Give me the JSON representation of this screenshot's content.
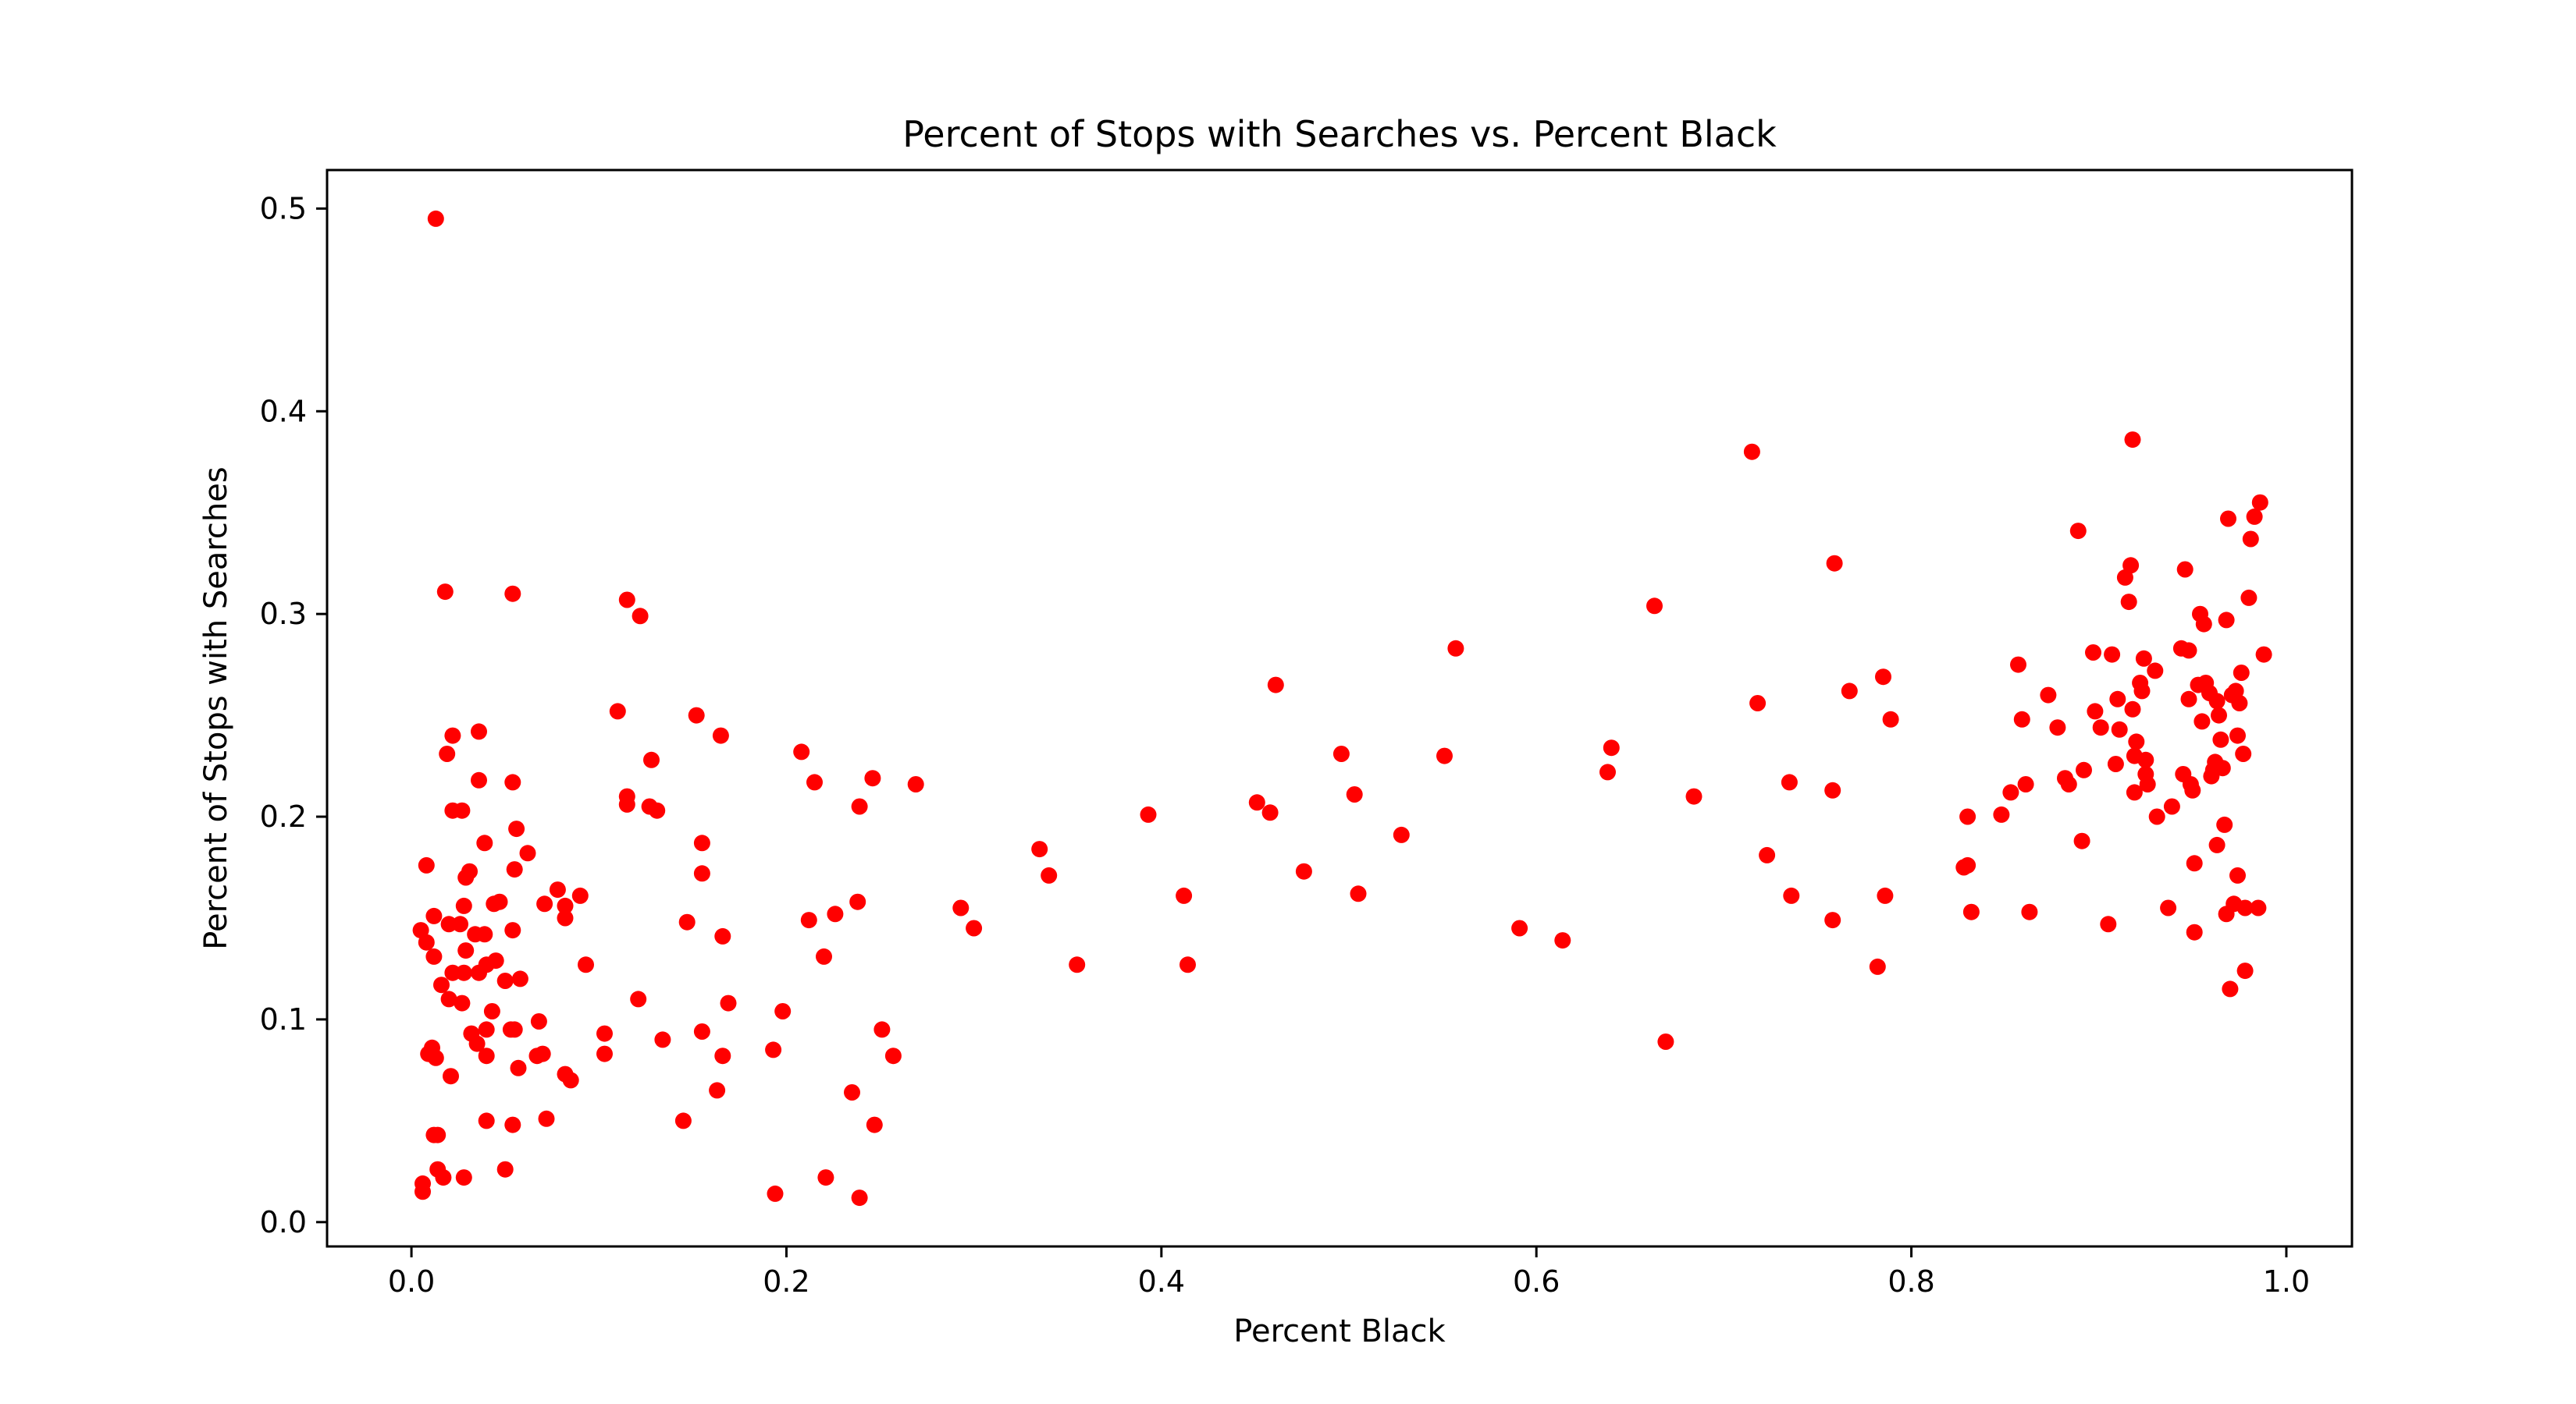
{
  "chart_data": {
    "type": "scatter",
    "title": "Percent of Stops with Searches vs. Percent Black",
    "xlabel": "Percent Black",
    "ylabel": "Percent of Stops with Searches",
    "xlim": [
      -0.045,
      1.035
    ],
    "ylim": [
      -0.012,
      0.519
    ],
    "xticks": [
      "0.0",
      "0.2",
      "0.4",
      "0.6",
      "0.8",
      "1.0"
    ],
    "yticks": [
      "0.0",
      "0.1",
      "0.2",
      "0.3",
      "0.4",
      "0.5"
    ],
    "grid": false,
    "legend": "none",
    "marker_color": "#ff0000",
    "points": [
      [
        0.013,
        0.495
      ],
      [
        0.018,
        0.311
      ],
      [
        0.054,
        0.31
      ],
      [
        0.115,
        0.307
      ],
      [
        0.122,
        0.299
      ],
      [
        0.022,
        0.24
      ],
      [
        0.036,
        0.242
      ],
      [
        0.019,
        0.231
      ],
      [
        0.11,
        0.252
      ],
      [
        0.152,
        0.25
      ],
      [
        0.165,
        0.24
      ],
      [
        0.128,
        0.228
      ],
      [
        0.036,
        0.218
      ],
      [
        0.054,
        0.217
      ],
      [
        0.115,
        0.21
      ],
      [
        0.115,
        0.206
      ],
      [
        0.127,
        0.205
      ],
      [
        0.131,
        0.203
      ],
      [
        0.022,
        0.203
      ],
      [
        0.027,
        0.203
      ],
      [
        0.056,
        0.194
      ],
      [
        0.039,
        0.187
      ],
      [
        0.062,
        0.182
      ],
      [
        0.008,
        0.176
      ],
      [
        0.031,
        0.173
      ],
      [
        0.029,
        0.17
      ],
      [
        0.055,
        0.174
      ],
      [
        0.078,
        0.164
      ],
      [
        0.09,
        0.161
      ],
      [
        0.028,
        0.156
      ],
      [
        0.047,
        0.158
      ],
      [
        0.044,
        0.157
      ],
      [
        0.012,
        0.151
      ],
      [
        0.02,
        0.147
      ],
      [
        0.026,
        0.147
      ],
      [
        0.071,
        0.157
      ],
      [
        0.082,
        0.156
      ],
      [
        0.082,
        0.15
      ],
      [
        0.005,
        0.144
      ],
      [
        0.008,
        0.138
      ],
      [
        0.012,
        0.131
      ],
      [
        0.034,
        0.142
      ],
      [
        0.039,
        0.142
      ],
      [
        0.054,
        0.144
      ],
      [
        0.029,
        0.134
      ],
      [
        0.022,
        0.123
      ],
      [
        0.028,
        0.123
      ],
      [
        0.036,
        0.123
      ],
      [
        0.04,
        0.127
      ],
      [
        0.045,
        0.129
      ],
      [
        0.05,
        0.119
      ],
      [
        0.058,
        0.12
      ],
      [
        0.016,
        0.117
      ],
      [
        0.02,
        0.11
      ],
      [
        0.027,
        0.108
      ],
      [
        0.043,
        0.104
      ],
      [
        0.068,
        0.099
      ],
      [
        0.093,
        0.127
      ],
      [
        0.032,
        0.093
      ],
      [
        0.04,
        0.095
      ],
      [
        0.053,
        0.095
      ],
      [
        0.055,
        0.095
      ],
      [
        0.035,
        0.088
      ],
      [
        0.04,
        0.082
      ],
      [
        0.011,
        0.086
      ],
      [
        0.013,
        0.081
      ],
      [
        0.009,
        0.083
      ],
      [
        0.021,
        0.072
      ],
      [
        0.057,
        0.076
      ],
      [
        0.067,
        0.082
      ],
      [
        0.07,
        0.083
      ],
      [
        0.082,
        0.073
      ],
      [
        0.085,
        0.07
      ],
      [
        0.072,
        0.051
      ],
      [
        0.04,
        0.05
      ],
      [
        0.054,
        0.048
      ],
      [
        0.012,
        0.043
      ],
      [
        0.014,
        0.043
      ],
      [
        0.014,
        0.026
      ],
      [
        0.017,
        0.022
      ],
      [
        0.028,
        0.022
      ],
      [
        0.006,
        0.019
      ],
      [
        0.006,
        0.015
      ],
      [
        0.05,
        0.026
      ],
      [
        0.103,
        0.093
      ],
      [
        0.103,
        0.083
      ],
      [
        0.121,
        0.11
      ],
      [
        0.134,
        0.09
      ],
      [
        0.145,
        0.05
      ],
      [
        0.147,
        0.148
      ],
      [
        0.155,
        0.172
      ],
      [
        0.155,
        0.187
      ],
      [
        0.155,
        0.094
      ],
      [
        0.163,
        0.065
      ],
      [
        0.166,
        0.082
      ],
      [
        0.166,
        0.141
      ],
      [
        0.169,
        0.108
      ],
      [
        0.193,
        0.085
      ],
      [
        0.194,
        0.014
      ],
      [
        0.198,
        0.104
      ],
      [
        0.208,
        0.232
      ],
      [
        0.212,
        0.149
      ],
      [
        0.215,
        0.217
      ],
      [
        0.22,
        0.131
      ],
      [
        0.221,
        0.022
      ],
      [
        0.226,
        0.152
      ],
      [
        0.235,
        0.064
      ],
      [
        0.238,
        0.158
      ],
      [
        0.239,
        0.012
      ],
      [
        0.239,
        0.205
      ],
      [
        0.246,
        0.219
      ],
      [
        0.247,
        0.048
      ],
      [
        0.251,
        0.095
      ],
      [
        0.257,
        0.082
      ],
      [
        0.269,
        0.216
      ],
      [
        0.293,
        0.155
      ],
      [
        0.3,
        0.145
      ],
      [
        0.335,
        0.184
      ],
      [
        0.34,
        0.171
      ],
      [
        0.355,
        0.127
      ],
      [
        0.393,
        0.201
      ],
      [
        0.412,
        0.161
      ],
      [
        0.414,
        0.127
      ],
      [
        0.451,
        0.207
      ],
      [
        0.458,
        0.202
      ],
      [
        0.461,
        0.265
      ],
      [
        0.476,
        0.173
      ],
      [
        0.496,
        0.231
      ],
      [
        0.503,
        0.211
      ],
      [
        0.505,
        0.162
      ],
      [
        0.528,
        0.191
      ],
      [
        0.551,
        0.23
      ],
      [
        0.557,
        0.283
      ],
      [
        0.591,
        0.145
      ],
      [
        0.614,
        0.139
      ],
      [
        0.638,
        0.222
      ],
      [
        0.64,
        0.234
      ],
      [
        0.663,
        0.304
      ],
      [
        0.669,
        0.089
      ],
      [
        0.684,
        0.21
      ],
      [
        0.715,
        0.38
      ],
      [
        0.718,
        0.256
      ],
      [
        0.723,
        0.181
      ],
      [
        0.735,
        0.217
      ],
      [
        0.736,
        0.161
      ],
      [
        0.758,
        0.213
      ],
      [
        0.759,
        0.325
      ],
      [
        0.758,
        0.149
      ],
      [
        0.767,
        0.262
      ],
      [
        0.782,
        0.126
      ],
      [
        0.785,
        0.269
      ],
      [
        0.786,
        0.161
      ],
      [
        0.789,
        0.248
      ],
      [
        0.828,
        0.175
      ],
      [
        0.83,
        0.176
      ],
      [
        0.83,
        0.2
      ],
      [
        0.832,
        0.153
      ],
      [
        0.848,
        0.201
      ],
      [
        0.853,
        0.212
      ],
      [
        0.857,
        0.275
      ],
      [
        0.859,
        0.248
      ],
      [
        0.861,
        0.216
      ],
      [
        0.863,
        0.153
      ],
      [
        0.873,
        0.26
      ],
      [
        0.878,
        0.244
      ],
      [
        0.882,
        0.219
      ],
      [
        0.884,
        0.216
      ],
      [
        0.889,
        0.341
      ],
      [
        0.891,
        0.188
      ],
      [
        0.892,
        0.223
      ],
      [
        0.897,
        0.281
      ],
      [
        0.898,
        0.252
      ],
      [
        0.901,
        0.244
      ],
      [
        0.905,
        0.147
      ],
      [
        0.907,
        0.28
      ],
      [
        0.909,
        0.226
      ],
      [
        0.91,
        0.258
      ],
      [
        0.911,
        0.243
      ],
      [
        0.914,
        0.318
      ],
      [
        0.916,
        0.306
      ],
      [
        0.917,
        0.324
      ],
      [
        0.918,
        0.386
      ],
      [
        0.918,
        0.253
      ],
      [
        0.919,
        0.23
      ],
      [
        0.919,
        0.212
      ],
      [
        0.92,
        0.237
      ],
      [
        0.922,
        0.266
      ],
      [
        0.923,
        0.262
      ],
      [
        0.924,
        0.278
      ],
      [
        0.925,
        0.228
      ],
      [
        0.925,
        0.221
      ],
      [
        0.926,
        0.216
      ],
      [
        0.93,
        0.272
      ],
      [
        0.931,
        0.2
      ],
      [
        0.937,
        0.155
      ],
      [
        0.939,
        0.205
      ],
      [
        0.944,
        0.283
      ],
      [
        0.945,
        0.221
      ],
      [
        0.946,
        0.322
      ],
      [
        0.948,
        0.282
      ],
      [
        0.948,
        0.258
      ],
      [
        0.949,
        0.216
      ],
      [
        0.95,
        0.213
      ],
      [
        0.951,
        0.177
      ],
      [
        0.951,
        0.143
      ],
      [
        0.953,
        0.265
      ],
      [
        0.954,
        0.3
      ],
      [
        0.955,
        0.247
      ],
      [
        0.956,
        0.295
      ],
      [
        0.957,
        0.266
      ],
      [
        0.959,
        0.261
      ],
      [
        0.96,
        0.22
      ],
      [
        0.961,
        0.223
      ],
      [
        0.962,
        0.227
      ],
      [
        0.963,
        0.257
      ],
      [
        0.963,
        0.186
      ],
      [
        0.964,
        0.25
      ],
      [
        0.965,
        0.238
      ],
      [
        0.966,
        0.224
      ],
      [
        0.967,
        0.196
      ],
      [
        0.968,
        0.297
      ],
      [
        0.968,
        0.152
      ],
      [
        0.969,
        0.347
      ],
      [
        0.97,
        0.115
      ],
      [
        0.971,
        0.26
      ],
      [
        0.972,
        0.157
      ],
      [
        0.973,
        0.262
      ],
      [
        0.974,
        0.171
      ],
      [
        0.974,
        0.24
      ],
      [
        0.975,
        0.256
      ],
      [
        0.976,
        0.271
      ],
      [
        0.977,
        0.231
      ],
      [
        0.978,
        0.155
      ],
      [
        0.978,
        0.124
      ],
      [
        0.98,
        0.308
      ],
      [
        0.981,
        0.337
      ],
      [
        0.983,
        0.348
      ],
      [
        0.985,
        0.155
      ],
      [
        0.986,
        0.355
      ],
      [
        0.988,
        0.28
      ]
    ]
  }
}
